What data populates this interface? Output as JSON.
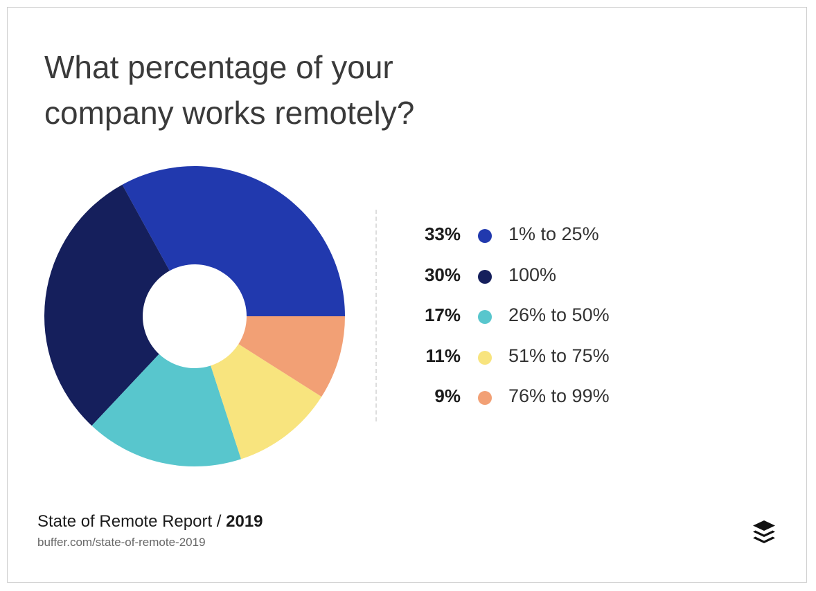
{
  "header": {
    "title_line1": "What percentage of your",
    "title_line2": "company works remotely?"
  },
  "chart_data": {
    "type": "pie",
    "title": "What percentage of your company works remotely?",
    "donut": true,
    "legend_position": "right",
    "series": [
      {
        "label": "1% to 25%",
        "value": 33,
        "value_text": "33%",
        "color": "#2139ae"
      },
      {
        "label": "100%",
        "value": 30,
        "value_text": "30%",
        "color": "#151f5c"
      },
      {
        "label": "26% to 50%",
        "value": 17,
        "value_text": "17%",
        "color": "#58c6cd"
      },
      {
        "label": "51% to 75%",
        "value": 11,
        "value_text": "11%",
        "color": "#f8e47e"
      },
      {
        "label": "76% to 99%",
        "value": 9,
        "value_text": "9%",
        "color": "#f2a075"
      }
    ]
  },
  "footer": {
    "source_name": "State of Remote Report / ",
    "source_year": "2019",
    "source_url": "buffer.com/state-of-remote-2019",
    "logo_icon": "buffer-logo-icon"
  }
}
